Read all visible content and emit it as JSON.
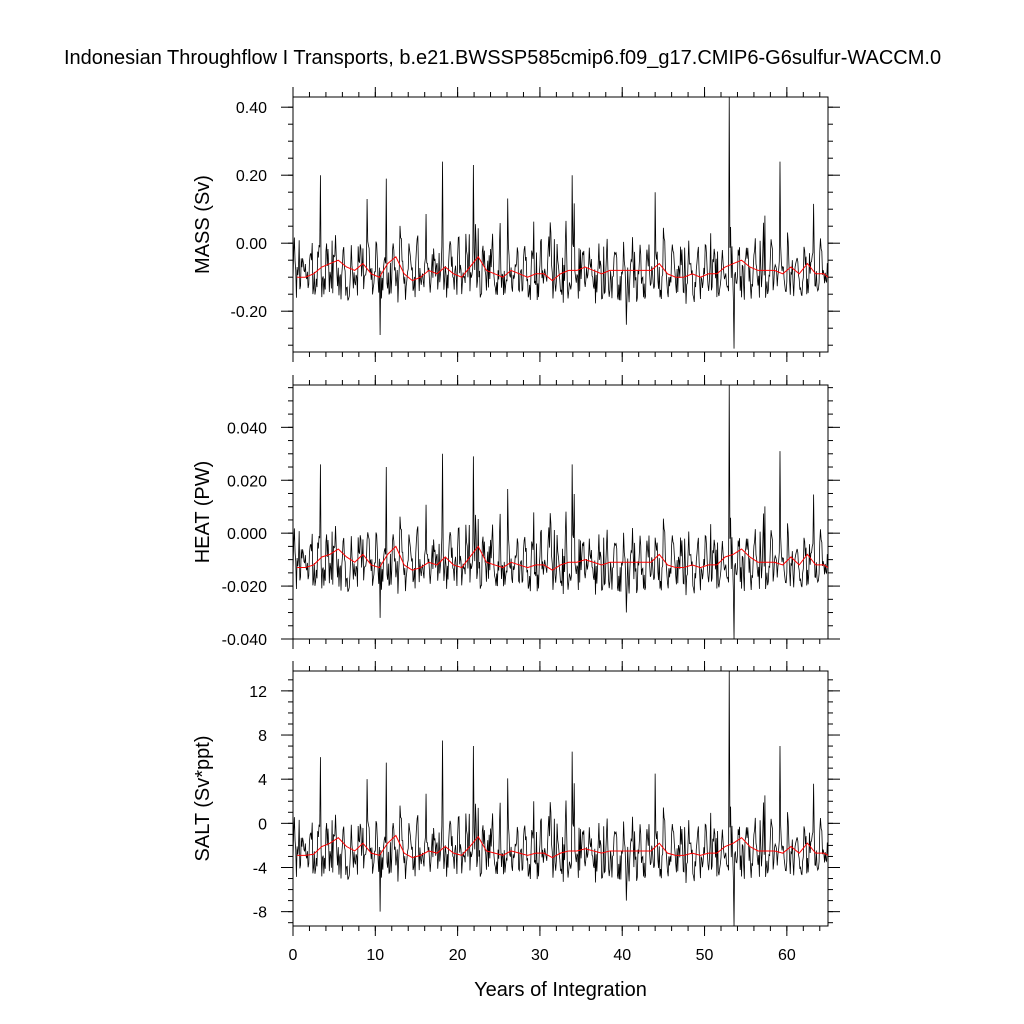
{
  "figure": {
    "title": "Indonesian Throughflow I Transports, b.e21.BWSSP585cmip6.f09_g17.CMIP6-G6sulfur-WACCM.0"
  },
  "colors": {
    "raw_series": "#000000",
    "annual_mean": "#ff0000"
  },
  "chart_data": [
    {
      "type": "line",
      "ylabel": "MASS (Sv)",
      "xlim": [
        0,
        65
      ],
      "ylim": [
        -0.32,
        0.43
      ],
      "yticks": [
        -0.2,
        0.0,
        0.2,
        0.4
      ],
      "ytick_labels": [
        "-0.20",
        "0.00",
        "0.20",
        "0.40"
      ],
      "xticks": [
        0,
        10,
        20,
        30,
        40,
        50,
        60
      ],
      "xtick_labels": [],
      "xlabel": "",
      "months_per_year": 12,
      "monthly_baseline": -0.09,
      "monthly_amplitude": 0.085,
      "peaks": [
        [
          3.3,
          0.2
        ],
        [
          9.0,
          0.13
        ],
        [
          11.3,
          0.19
        ],
        [
          18.2,
          0.24
        ],
        [
          21.9,
          0.23
        ],
        [
          33.9,
          0.2
        ],
        [
          44.0,
          0.15
        ],
        [
          53.0,
          0.43
        ],
        [
          59.2,
          0.24
        ]
      ],
      "troughs": [
        [
          10.6,
          -0.27
        ],
        [
          53.6,
          -0.31
        ],
        [
          40.5,
          -0.24
        ]
      ],
      "annual_mean": [
        -0.1,
        -0.1,
        -0.09,
        -0.07,
        -0.06,
        -0.05,
        -0.07,
        -0.08,
        -0.06,
        -0.09,
        -0.1,
        -0.06,
        -0.04,
        -0.09,
        -0.11,
        -0.1,
        -0.08,
        -0.09,
        -0.07,
        -0.09,
        -0.1,
        -0.07,
        -0.04,
        -0.08,
        -0.09,
        -0.1,
        -0.08,
        -0.09,
        -0.1,
        -0.09,
        -0.09,
        -0.11,
        -0.09,
        -0.08,
        -0.08,
        -0.07,
        -0.08,
        -0.09,
        -0.08,
        -0.08,
        -0.08,
        -0.08,
        -0.08,
        -0.08,
        -0.06,
        -0.09,
        -0.1,
        -0.1,
        -0.09,
        -0.1,
        -0.09,
        -0.09,
        -0.07,
        -0.06,
        -0.05,
        -0.07,
        -0.08,
        -0.08,
        -0.08,
        -0.09,
        -0.07,
        -0.09,
        -0.06,
        -0.09,
        -0.09,
        -0.1
      ],
      "series": [
        {
          "name": "",
          "values": "monthly",
          "color": "#000000"
        },
        {
          "name": "",
          "values": "annual_mean",
          "color": "#ff0000"
        }
      ]
    },
    {
      "type": "line",
      "ylabel": "HEAT (PW)",
      "xlim": [
        0,
        65
      ],
      "ylim": [
        -0.04,
        0.056
      ],
      "yticks": [
        -0.04,
        -0.02,
        0.0,
        0.02,
        0.04
      ],
      "ytick_labels": [
        "-0.040",
        "-0.020",
        "0.000",
        "0.020",
        "0.040"
      ],
      "xticks": [
        0,
        10,
        20,
        30,
        40,
        50,
        60
      ],
      "xtick_labels": [],
      "xlabel": "",
      "months_per_year": 12,
      "monthly_baseline": -0.012,
      "monthly_amplitude": 0.011,
      "peaks": [
        [
          3.3,
          0.026
        ],
        [
          11.3,
          0.025
        ],
        [
          18.2,
          0.03
        ],
        [
          21.9,
          0.029
        ],
        [
          33.9,
          0.026
        ],
        [
          53.0,
          0.056
        ],
        [
          59.2,
          0.031
        ]
      ],
      "troughs": [
        [
          10.6,
          -0.032
        ],
        [
          53.6,
          -0.04
        ],
        [
          40.5,
          -0.03
        ]
      ],
      "annual_mean": [
        -0.013,
        -0.013,
        -0.012,
        -0.009,
        -0.008,
        -0.006,
        -0.009,
        -0.011,
        -0.008,
        -0.012,
        -0.013,
        -0.008,
        -0.005,
        -0.012,
        -0.014,
        -0.013,
        -0.011,
        -0.012,
        -0.009,
        -0.012,
        -0.013,
        -0.009,
        -0.005,
        -0.011,
        -0.012,
        -0.013,
        -0.011,
        -0.012,
        -0.013,
        -0.012,
        -0.012,
        -0.014,
        -0.012,
        -0.011,
        -0.011,
        -0.01,
        -0.011,
        -0.012,
        -0.011,
        -0.011,
        -0.011,
        -0.011,
        -0.011,
        -0.011,
        -0.008,
        -0.012,
        -0.013,
        -0.013,
        -0.012,
        -0.013,
        -0.012,
        -0.012,
        -0.009,
        -0.008,
        -0.006,
        -0.009,
        -0.011,
        -0.011,
        -0.011,
        -0.012,
        -0.009,
        -0.012,
        -0.008,
        -0.012,
        -0.012,
        -0.013
      ],
      "series": [
        {
          "name": "",
          "values": "monthly",
          "color": "#000000"
        },
        {
          "name": "",
          "values": "annual_mean",
          "color": "#ff0000"
        }
      ]
    },
    {
      "type": "line",
      "ylabel": "SALT (Sv*ppt)",
      "xlim": [
        0,
        65
      ],
      "ylim": [
        -9.3,
        13.8
      ],
      "yticks": [
        -8,
        -4,
        0,
        4,
        8,
        12
      ],
      "ytick_labels": [
        "-8",
        "-4",
        "0",
        "4",
        "8",
        "12"
      ],
      "xticks": [
        0,
        10,
        20,
        30,
        40,
        50,
        60
      ],
      "xtick_labels": [
        "0",
        "10",
        "20",
        "30",
        "40",
        "50",
        "60"
      ],
      "xlabel": "Years of Integration",
      "months_per_year": 12,
      "monthly_baseline": -2.7,
      "monthly_amplitude": 2.6,
      "peaks": [
        [
          3.3,
          6.0
        ],
        [
          9.0,
          4.0
        ],
        [
          11.3,
          5.5
        ],
        [
          18.2,
          7.5
        ],
        [
          21.9,
          7.0
        ],
        [
          33.9,
          6.5
        ],
        [
          44.0,
          4.5
        ],
        [
          53.0,
          13.8
        ],
        [
          59.2,
          7.0
        ]
      ],
      "troughs": [
        [
          10.6,
          -8.0
        ],
        [
          53.6,
          -9.3
        ],
        [
          40.5,
          -7.0
        ]
      ],
      "annual_mean": [
        -2.9,
        -2.9,
        -2.8,
        -2.1,
        -1.8,
        -1.3,
        -2.1,
        -2.5,
        -1.8,
        -2.7,
        -2.9,
        -1.8,
        -1.1,
        -2.7,
        -3.1,
        -2.9,
        -2.5,
        -2.7,
        -2.1,
        -2.7,
        -2.9,
        -2.1,
        -1.2,
        -2.5,
        -2.7,
        -2.9,
        -2.5,
        -2.7,
        -2.9,
        -2.7,
        -2.7,
        -3.1,
        -2.7,
        -2.5,
        -2.5,
        -2.3,
        -2.5,
        -2.7,
        -2.5,
        -2.5,
        -2.5,
        -2.5,
        -2.5,
        -2.5,
        -1.8,
        -2.7,
        -2.9,
        -2.9,
        -2.7,
        -2.9,
        -2.7,
        -2.7,
        -2.1,
        -1.8,
        -1.3,
        -2.1,
        -2.5,
        -2.5,
        -2.5,
        -2.7,
        -2.1,
        -2.7,
        -1.8,
        -2.7,
        -2.7,
        -2.9
      ],
      "series": [
        {
          "name": "",
          "values": "monthly",
          "color": "#000000"
        },
        {
          "name": "",
          "values": "annual_mean",
          "color": "#ff0000"
        }
      ]
    }
  ]
}
